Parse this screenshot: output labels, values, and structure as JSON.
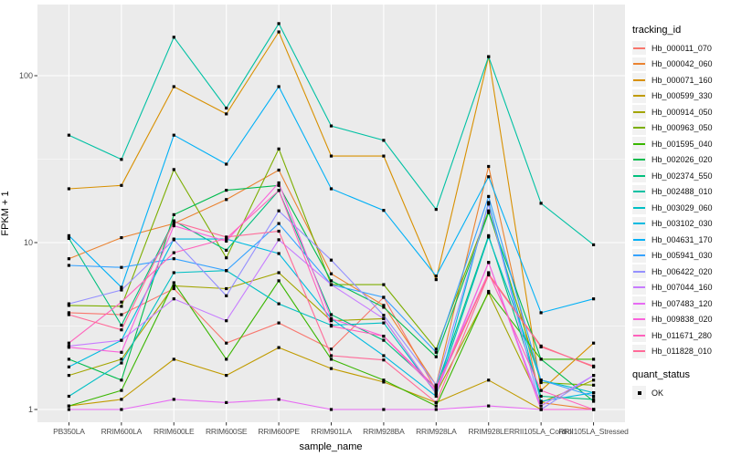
{
  "figure": {
    "background": "#FFFFFF",
    "panel_background": "#EBEBEB",
    "grid_color": "#FFFFFF",
    "axis_text_color": "#4D4D4D",
    "axis_title_color": "#000000",
    "legend_key_background": "#F2F2F2",
    "point_color": "#000000"
  },
  "chart_data": {
    "type": "line",
    "y_scale": "log10",
    "grid": true,
    "marker": "black-square",
    "xlabel": "sample_name",
    "ylabel": "FPKM + 1",
    "categories": [
      "PB350LA",
      "RRIM600LA",
      "RRIM600LE",
      "RRIM600SE",
      "RRIM600PE",
      "RRIM901LA",
      "RRIM928BA",
      "RRIM928LA",
      "RRIM928LE",
      "RRII105LA_Control",
      "RRII105LA_Stressed"
    ],
    "y_ticks": [
      1,
      10,
      100
    ],
    "y_minor_ticks": [
      3.162,
      31.62
    ],
    "ylim": [
      0.94,
      267
    ],
    "legend": {
      "title": "tracking_id",
      "position": "right"
    },
    "quant_legend": {
      "title": "quant_status",
      "items": [
        {
          "label": "OK",
          "marker": "black-square",
          "color": "#000000"
        }
      ]
    },
    "series": [
      {
        "name": "Hb_000011_070",
        "color": "#F8766D",
        "values": [
          3.8,
          3.7,
          5.3,
          2.5,
          3.3,
          2.3,
          4.7,
          1.3,
          6.5,
          2.4,
          1.8
        ]
      },
      {
        "name": "Hb_000042_060",
        "color": "#EA8331",
        "values": [
          8.0,
          10.7,
          13.0,
          18.1,
          27.2,
          6.5,
          4.2,
          1.4,
          28.6,
          1.1,
          1.0
        ]
      },
      {
        "name": "Hb_000071_160",
        "color": "#D89000",
        "values": [
          21,
          22,
          86,
          59,
          183,
          33,
          33,
          6.0,
          130,
          1.3,
          2.5
        ]
      },
      {
        "name": "Hb_000599_330",
        "color": "#C09B00",
        "values": [
          1.05,
          1.15,
          2.0,
          1.6,
          2.35,
          1.76,
          1.46,
          1.1,
          1.5,
          1.0,
          1.0
        ]
      },
      {
        "name": "Hb_000914_050",
        "color": "#A3A500",
        "values": [
          1.6,
          2.0,
          5.5,
          5.3,
          6.6,
          3.4,
          3.5,
          1.25,
          5.0,
          1.1,
          1.5
        ]
      },
      {
        "name": "Hb_000963_050",
        "color": "#7CAE00",
        "values": [
          4.2,
          4.15,
          27.4,
          8.1,
          36.4,
          5.6,
          5.6,
          2.3,
          15.5,
          1.45,
          1.4
        ]
      },
      {
        "name": "Hb_001595_040",
        "color": "#39B600",
        "values": [
          1.05,
          1.3,
          5.75,
          2.0,
          5.9,
          2.0,
          1.5,
          1.05,
          5.1,
          2.0,
          2.0
        ]
      },
      {
        "name": "Hb_002026_020",
        "color": "#00BB4E",
        "values": [
          2.0,
          1.5,
          14.7,
          20.6,
          22.0,
          5.9,
          4.1,
          2.07,
          15.1,
          2.0,
          1.12
        ]
      },
      {
        "name": "Hb_002374_550",
        "color": "#00BF7D",
        "values": [
          10.6,
          3.2,
          13.5,
          9.0,
          20.5,
          3.7,
          2.6,
          1.35,
          11.0,
          1.2,
          1.15
        ]
      },
      {
        "name": "Hb_002488_010",
        "color": "#00C1A3",
        "values": [
          44,
          31.5,
          170,
          64,
          205,
          50,
          41,
          15.8,
          130,
          17.2,
          9.7
        ]
      },
      {
        "name": "Hb_003029_060",
        "color": "#00BFC4",
        "values": [
          1.2,
          1.9,
          6.6,
          6.8,
          4.3,
          3.2,
          3.3,
          1.25,
          10.8,
          1.5,
          1.26
        ]
      },
      {
        "name": "Hb_003102_030",
        "color": "#00BAE0",
        "values": [
          1.8,
          2.6,
          10.5,
          10.5,
          8.6,
          3.5,
          2.1,
          1.2,
          17.4,
          1.12,
          1.26
        ]
      },
      {
        "name": "Hb_004631_170",
        "color": "#00B0F6",
        "values": [
          11,
          5.4,
          44,
          29.5,
          86,
          21,
          15.6,
          6.3,
          24.8,
          3.8,
          4.6
        ]
      },
      {
        "name": "Hb_005941_030",
        "color": "#35A2FF",
        "values": [
          7.3,
          7.1,
          8.0,
          6.8,
          13,
          5.6,
          4.7,
          2.2,
          18.9,
          1.5,
          1.2
        ]
      },
      {
        "name": "Hb_006422_020",
        "color": "#9590FF",
        "values": [
          4.3,
          5.2,
          10.4,
          4.8,
          15.5,
          7.85,
          3.67,
          1.4,
          17.0,
          1.0,
          1.6
        ]
      },
      {
        "name": "Hb_007044_160",
        "color": "#C77CFF",
        "values": [
          2.4,
          2.6,
          4.6,
          3.4,
          10.4,
          5.6,
          3.5,
          1.25,
          7.6,
          1.05,
          1.6
        ]
      },
      {
        "name": "Hb_007483_120",
        "color": "#E76BF3",
        "values": [
          1.0,
          1.0,
          1.15,
          1.1,
          1.15,
          1.0,
          1.0,
          1.0,
          1.05,
          1.0,
          1.0
        ]
      },
      {
        "name": "Hb_009838_020",
        "color": "#FA62DB",
        "values": [
          2.36,
          2.2,
          12.6,
          10.2,
          22.8,
          3.5,
          2.75,
          1.3,
          7.6,
          1.0,
          1.0
        ]
      },
      {
        "name": "Hb_011671_280",
        "color": "#FF62BC",
        "values": [
          2.5,
          4.4,
          8.7,
          10.6,
          20.5,
          3.16,
          2.75,
          1.35,
          6.6,
          1.3,
          1.0
        ]
      },
      {
        "name": "Hb_011828_010",
        "color": "#FF6A98",
        "values": [
          3.7,
          3.0,
          13.3,
          10.8,
          11.7,
          2.1,
          1.98,
          1.1,
          6.4,
          2.37,
          1.82
        ]
      }
    ]
  }
}
